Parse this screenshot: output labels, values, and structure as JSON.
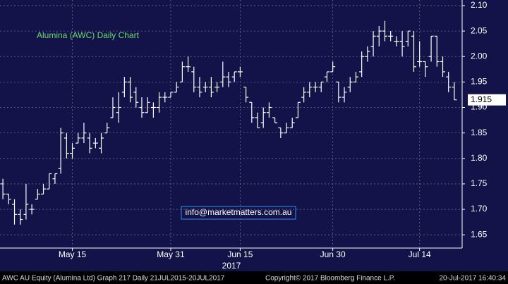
{
  "chart_data": {
    "type": "ohlc",
    "title": "Alumina (AWC) Daily Chart",
    "annotation": "info@marketmatters.com.au",
    "year_label": "2017",
    "last_price": 1.915,
    "color": "#ffffff",
    "grid": true,
    "categories": [
      null,
      null,
      null,
      null,
      null,
      null,
      null,
      null,
      null,
      null,
      null,
      null,
      "May 15",
      null,
      null,
      null,
      null,
      null,
      null,
      null,
      null,
      null,
      null,
      null,
      null,
      null,
      null,
      null,
      null,
      "May 31",
      null,
      null,
      null,
      null,
      null,
      null,
      null,
      null,
      null,
      null,
      null,
      "Jun 15",
      null,
      null,
      null,
      null,
      null,
      null,
      null,
      null,
      null,
      null,
      null,
      null,
      null,
      null,
      null,
      "Jun 30",
      null,
      null,
      null,
      null,
      null,
      null,
      null,
      null,
      null,
      null,
      null,
      null,
      null,
      null,
      "Jul 14",
      null,
      null,
      null,
      null,
      null,
      null
    ],
    "open": [
      1.75,
      1.73,
      1.71,
      1.69,
      1.69,
      1.7,
      1.72,
      1.73,
      1.74,
      1.76,
      1.78,
      1.84,
      1.81,
      1.83,
      1.84,
      1.84,
      1.83,
      1.82,
      1.85,
      1.88,
      1.89,
      1.93,
      1.95,
      1.93,
      1.9,
      1.89,
      1.9,
      1.9,
      1.92,
      1.92,
      1.93,
      1.95,
      1.98,
      1.97,
      1.94,
      1.94,
      1.94,
      1.94,
      1.95,
      1.96,
      1.96,
      1.97,
      1.94,
      1.91,
      1.88,
      1.87,
      1.89,
      1.88,
      1.86,
      1.85,
      1.86,
      1.88,
      1.92,
      1.93,
      1.94,
      1.94,
      1.96,
      1.97,
      1.95,
      1.92,
      1.94,
      1.95,
      1.97,
      2.0,
      2.02,
      2.04,
      2.05,
      2.04,
      2.03,
      2.03,
      2.03,
      2.04,
      1.99,
      1.99,
      2.0,
      2.04,
      1.99,
      1.96,
      1.94
    ],
    "high": [
      1.76,
      1.73,
      1.72,
      1.7,
      1.75,
      1.71,
      1.74,
      1.75,
      1.77,
      1.77,
      1.86,
      1.85,
      1.83,
      1.85,
      1.87,
      1.85,
      1.84,
      1.85,
      1.87,
      1.92,
      1.93,
      1.96,
      1.96,
      1.94,
      1.92,
      1.92,
      1.91,
      1.93,
      1.93,
      1.93,
      1.95,
      1.99,
      2.0,
      1.98,
      1.96,
      1.95,
      1.96,
      1.95,
      1.99,
      1.97,
      1.97,
      1.98,
      1.94,
      1.91,
      1.89,
      1.9,
      1.91,
      1.88,
      1.86,
      1.87,
      1.88,
      1.91,
      1.94,
      1.95,
      1.95,
      1.95,
      1.97,
      1.99,
      1.95,
      1.94,
      1.96,
      1.97,
      2.01,
      2.02,
      2.05,
      2.06,
      2.07,
      2.05,
      2.04,
      2.05,
      2.05,
      2.05,
      2.03,
      1.99,
      2.04,
      2.04,
      2.0,
      1.97,
      1.95
    ],
    "low": [
      1.72,
      1.71,
      1.67,
      1.67,
      1.68,
      1.69,
      1.72,
      1.73,
      1.74,
      1.75,
      1.77,
      1.8,
      1.8,
      1.83,
      1.83,
      1.81,
      1.82,
      1.81,
      1.85,
      1.88,
      1.87,
      1.92,
      1.91,
      1.9,
      1.88,
      1.89,
      1.88,
      1.89,
      1.91,
      1.92,
      1.93,
      1.95,
      1.97,
      1.93,
      1.92,
      1.93,
      1.92,
      1.93,
      1.94,
      1.94,
      1.95,
      1.96,
      1.91,
      1.87,
      1.86,
      1.86,
      1.88,
      1.87,
      1.84,
      1.85,
      1.86,
      1.88,
      1.91,
      1.92,
      1.93,
      1.93,
      1.95,
      1.97,
      1.91,
      1.91,
      1.93,
      1.95,
      1.96,
      1.99,
      2.0,
      2.02,
      2.03,
      2.03,
      2.02,
      2.0,
      2.02,
      1.97,
      1.98,
      1.96,
      1.99,
      1.98,
      1.96,
      1.93,
      1.915
    ],
    "close": [
      1.73,
      1.72,
      1.69,
      1.68,
      1.71,
      1.7,
      1.73,
      1.74,
      1.77,
      1.77,
      1.85,
      1.81,
      1.82,
      1.84,
      1.85,
      1.82,
      1.83,
      1.84,
      1.86,
      1.9,
      1.9,
      1.95,
      1.92,
      1.91,
      1.89,
      1.91,
      1.9,
      1.92,
      1.92,
      1.93,
      1.94,
      1.98,
      1.98,
      1.94,
      1.93,
      1.94,
      1.93,
      1.94,
      1.96,
      1.95,
      1.97,
      1.97,
      1.92,
      1.88,
      1.86,
      1.89,
      1.9,
      1.87,
      1.85,
      1.86,
      1.87,
      1.91,
      1.93,
      1.94,
      1.94,
      1.95,
      1.97,
      1.98,
      1.92,
      1.93,
      1.95,
      1.96,
      2.0,
      2.01,
      2.04,
      2.05,
      2.04,
      2.04,
      2.03,
      2.02,
      2.05,
      1.98,
      1.99,
      1.98,
      2.04,
      1.99,
      1.97,
      1.94,
      1.915
    ],
    "ylim": [
      1.624,
      2.111
    ],
    "yticks": [
      1.65,
      {
        "value": 1.7,
        "label": "1.70"
      },
      1.75,
      {
        "value": 1.8,
        "label": "1.80"
      },
      1.85,
      {
        "value": 1.9,
        "label": "1.90"
      },
      1.95,
      {
        "value": 2.0,
        "label": "2.00"
      },
      2.05,
      {
        "value": 2.1,
        "label": "2.10"
      }
    ]
  },
  "footer": {
    "left": "AWC AU Equity (Alumina Ltd) Graph 217  Daily 21JUL2015-20JUL2017",
    "middle": "Copyright© 2017 Bloomberg Finance L.P.",
    "right": "20-Jul-2017 16:40:34"
  }
}
